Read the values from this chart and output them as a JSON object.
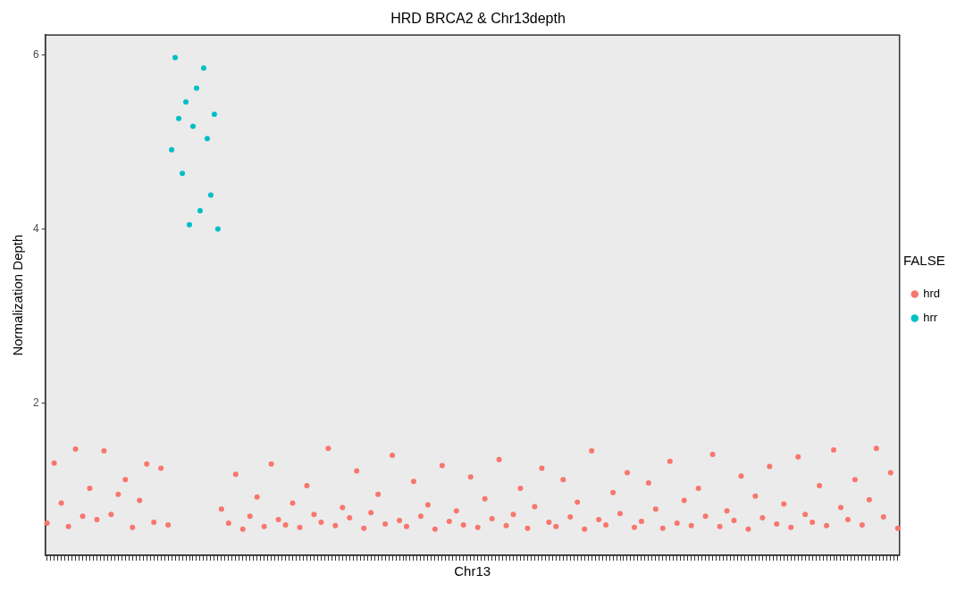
{
  "chart_data": {
    "type": "scatter",
    "title": "HRD BRCA2 & Chr13depth",
    "xlabel": "Chr13",
    "ylabel": "Normalization Depth",
    "legend_title": "FALSE",
    "legend": "right",
    "grid": false,
    "marker": "circle",
    "tick_labels": "y",
    "ylim": [
      0.25,
      6.23
    ],
    "yticks": [
      2,
      4,
      6
    ],
    "categories": [
      null,
      null,
      null,
      null,
      null,
      null,
      null,
      null,
      null,
      null,
      null,
      null,
      null,
      null,
      null,
      null,
      null,
      null,
      null,
      null,
      null,
      null,
      null,
      null,
      null,
      null,
      null,
      null,
      null,
      null,
      null,
      null,
      null,
      null,
      null,
      null,
      null,
      null,
      null,
      null,
      null,
      null,
      null,
      null,
      null,
      null,
      null,
      null,
      null,
      null,
      null,
      null,
      null,
      null,
      null,
      null,
      null,
      null,
      null,
      null,
      null,
      null,
      null,
      null,
      null,
      null,
      null,
      null,
      null,
      null,
      null,
      null,
      null,
      null,
      null,
      null,
      null,
      null,
      null,
      null,
      null,
      null,
      null,
      null,
      null,
      null,
      null,
      null,
      null,
      null,
      null,
      null,
      null,
      null,
      null,
      null,
      null,
      null,
      null,
      null,
      null,
      null,
      null,
      null,
      null,
      null,
      null,
      null,
      null,
      null,
      null,
      null,
      null,
      null,
      null,
      null,
      null,
      null,
      null,
      null,
      null,
      null,
      null,
      null,
      null,
      null,
      null,
      null,
      null,
      null,
      null,
      null,
      null,
      null,
      null,
      null,
      null,
      null,
      null,
      null,
      null,
      null,
      null,
      null,
      null,
      null,
      null,
      null,
      null,
      null,
      null,
      null,
      null,
      null,
      null,
      null,
      null,
      null,
      null,
      null,
      null,
      null,
      null,
      null,
      null,
      null,
      null,
      null,
      null,
      null,
      null,
      null,
      null,
      null,
      null,
      null,
      null,
      null,
      null,
      null,
      null,
      null,
      null,
      null,
      null,
      null,
      null,
      null,
      null,
      null,
      null,
      null,
      null,
      null,
      null,
      null,
      null,
      null,
      null,
      null,
      null,
      null,
      null,
      null,
      null,
      null,
      null,
      null,
      null,
      null,
      null,
      null,
      null,
      null,
      null,
      null,
      null,
      null,
      null,
      null,
      null,
      null,
      null,
      null,
      null,
      null,
      null,
      null,
      null,
      null,
      null,
      null,
      null,
      null,
      null,
      null,
      null,
      null,
      null,
      null
    ],
    "series": [
      {
        "name": "hrd",
        "color": "#f8766d",
        "values": [
          0.62,
          null,
          1.31,
          null,
          0.85,
          null,
          0.58,
          null,
          1.47,
          null,
          0.7,
          null,
          1.02,
          null,
          0.66,
          null,
          1.45,
          null,
          0.72,
          null,
          0.95,
          null,
          1.12,
          null,
          0.57,
          null,
          0.88,
          null,
          1.3,
          null,
          0.63,
          null,
          1.25,
          null,
          0.6,
          null,
          null,
          null,
          null,
          null,
          null,
          null,
          null,
          null,
          null,
          null,
          null,
          null,
          null,
          0.78,
          null,
          0.62,
          null,
          1.18,
          null,
          0.55,
          null,
          0.7,
          null,
          0.92,
          null,
          0.58,
          null,
          1.3,
          null,
          0.66,
          null,
          0.6,
          null,
          0.85,
          null,
          0.57,
          null,
          1.05,
          null,
          0.72,
          null,
          0.63,
          null,
          1.48,
          null,
          0.59,
          null,
          0.8,
          null,
          0.68,
          null,
          1.22,
          null,
          0.56,
          null,
          0.74,
          null,
          0.95,
          null,
          0.61,
          null,
          1.4,
          null,
          0.65,
          null,
          0.58,
          null,
          1.1,
          null,
          0.7,
          null,
          0.83,
          null,
          0.55,
          null,
          1.28,
          null,
          0.64,
          null,
          0.76,
          null,
          0.6,
          null,
          1.15,
          null,
          0.57,
          null,
          0.9,
          null,
          0.67,
          null,
          1.35,
          null,
          0.59,
          null,
          0.72,
          null,
          1.02,
          null,
          0.56,
          null,
          0.81,
          null,
          1.25,
          null,
          0.63,
          null,
          0.58,
          null,
          1.12,
          null,
          0.69,
          null,
          0.86,
          null,
          0.55,
          null,
          1.45,
          null,
          0.66,
          null,
          0.6,
          null,
          0.97,
          null,
          0.73,
          null,
          1.2,
          null,
          0.57,
          null,
          0.64,
          null,
          1.08,
          null,
          0.78,
          null,
          0.56,
          null,
          1.33,
          null,
          0.62,
          null,
          0.88,
          null,
          0.59,
          null,
          1.02,
          null,
          0.7,
          null,
          1.41,
          null,
          0.58,
          null,
          0.76,
          null,
          0.65,
          null,
          1.16,
          null,
          0.55,
          null,
          0.93,
          null,
          0.68,
          null,
          1.27,
          null,
          0.61,
          null,
          0.84,
          null,
          0.57,
          null,
          1.38,
          null,
          0.72,
          null,
          0.63,
          null,
          1.05,
          null,
          0.59,
          null,
          1.46,
          null,
          0.8,
          null,
          0.66,
          null,
          1.12,
          null,
          0.6,
          null,
          0.89,
          null,
          1.48,
          null,
          0.69,
          null,
          1.2,
          null,
          0.56
        ]
      },
      {
        "name": "hrr",
        "color": "#00bfc4",
        "values": [
          null,
          null,
          null,
          null,
          null,
          null,
          null,
          null,
          null,
          null,
          null,
          null,
          null,
          null,
          null,
          null,
          null,
          null,
          null,
          null,
          null,
          null,
          null,
          null,
          null,
          null,
          null,
          null,
          null,
          null,
          null,
          null,
          null,
          null,
          null,
          4.91,
          5.97,
          5.27,
          4.64,
          5.46,
          4.05,
          5.18,
          5.62,
          4.21,
          5.85,
          5.04,
          4.39,
          5.32,
          4.0,
          null,
          null,
          null,
          null,
          null,
          null,
          null,
          null,
          null,
          null,
          null,
          null,
          null,
          null,
          null,
          null,
          null,
          null,
          null,
          null,
          null,
          null,
          null,
          null,
          null,
          null,
          null,
          null,
          null,
          null,
          null,
          null,
          null,
          null,
          null,
          null,
          null,
          null,
          null,
          null,
          null,
          null,
          null,
          null,
          null,
          null,
          null,
          null,
          null,
          null,
          null,
          null,
          null,
          null,
          null,
          null,
          null,
          null,
          null,
          null,
          null,
          null,
          null,
          null,
          null,
          null,
          null,
          null,
          null,
          null,
          null,
          null,
          null,
          null,
          null,
          null,
          null,
          null,
          null,
          null,
          null,
          null,
          null,
          null,
          null,
          null,
          null,
          null,
          null,
          null,
          null,
          null,
          null,
          null,
          null,
          null,
          null,
          null,
          null,
          null,
          null,
          null,
          null,
          null,
          null,
          null,
          null,
          null,
          null,
          null,
          null,
          null,
          null,
          null,
          null,
          null,
          null,
          null,
          null,
          null,
          null,
          null,
          null,
          null,
          null,
          null,
          null,
          null,
          null,
          null,
          null,
          null,
          null,
          null,
          null,
          null,
          null,
          null,
          null,
          null,
          null,
          null,
          null,
          null,
          null,
          null,
          null,
          null,
          null,
          null,
          null,
          null,
          null,
          null,
          null,
          null,
          null,
          null,
          null,
          null,
          null,
          null,
          null,
          null,
          null,
          null,
          null,
          null,
          null,
          null,
          null,
          null,
          null,
          null,
          null,
          null,
          null,
          null,
          null,
          null,
          null,
          null,
          null,
          null,
          null,
          null,
          null,
          null,
          null,
          null,
          null
        ]
      }
    ]
  }
}
